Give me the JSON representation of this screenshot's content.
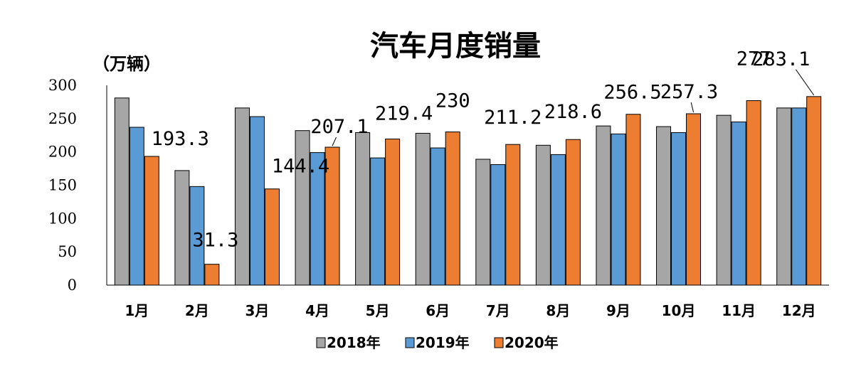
{
  "chart_data": {
    "type": "bar",
    "title": "汽车月度销量",
    "ylabel": "（万辆）",
    "xlabel": "",
    "ylim": [
      0,
      300
    ],
    "yticks": [
      0,
      50,
      100,
      150,
      200,
      250,
      300
    ],
    "categories": [
      "1月",
      "2月",
      "3月",
      "4月",
      "5月",
      "6月",
      "7月",
      "8月",
      "9月",
      "10月",
      "11月",
      "12月"
    ],
    "series": [
      {
        "name": "2018年",
        "color": "#a6a6a6",
        "values": [
          281,
          172,
          266,
          232,
          229,
          228,
          189,
          210,
          239,
          238,
          255,
          266
        ]
      },
      {
        "name": "2019年",
        "color": "#5b9bd5",
        "values": [
          237,
          148,
          253,
          199,
          191,
          206,
          181,
          196,
          227,
          229,
          245,
          266
        ]
      },
      {
        "name": "2020年",
        "color": "#ed7d31",
        "values": [
          193.3,
          31.3,
          144.4,
          207.1,
          219.4,
          230,
          211.2,
          218.6,
          256.5,
          257.3,
          277,
          283.1
        ]
      }
    ],
    "data_labels": [
      "193.3",
      "31.3",
      "144.4",
      "207.1",
      "219.4",
      "230",
      "211.2",
      "218.6",
      "256.5",
      "257.3",
      "277",
      "283.1"
    ],
    "legend_position": "bottom",
    "grid": false
  }
}
